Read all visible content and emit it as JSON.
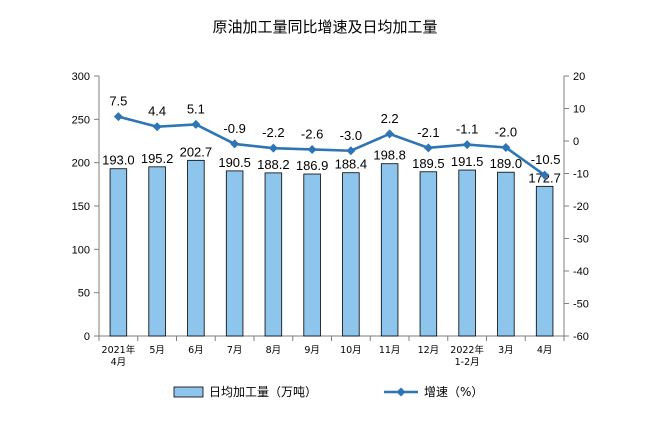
{
  "chart_data": {
    "type": "bar+line",
    "title": "原油加工量同比增速及日均加工量",
    "categories": [
      [
        "2021年",
        "4月"
      ],
      [
        "5月"
      ],
      [
        "6月"
      ],
      [
        "7月"
      ],
      [
        "8月"
      ],
      [
        "9月"
      ],
      [
        "10月"
      ],
      [
        "11月"
      ],
      [
        "12月"
      ],
      [
        "2022年",
        "1-2月"
      ],
      [
        "3月"
      ],
      [
        "4月"
      ]
    ],
    "series": [
      {
        "name": "日均加工量（万吨）",
        "type": "bar",
        "axis": "left",
        "color": "#8EC5EC",
        "values": [
          193.0,
          195.2,
          202.7,
          190.5,
          188.2,
          186.9,
          188.4,
          198.8,
          189.5,
          191.5,
          189.0,
          172.7
        ],
        "labels": [
          "193.0",
          "195.2",
          "202.7",
          "190.5",
          "188.2",
          "186.9",
          "188.4",
          "198.8",
          "189.5",
          "191.5",
          "189.0",
          "172.7"
        ]
      },
      {
        "name": "增速（%）",
        "type": "line",
        "axis": "right",
        "color": "#2E75B6",
        "values": [
          7.5,
          4.4,
          5.1,
          -0.9,
          -2.2,
          -2.6,
          -3.0,
          2.2,
          -2.1,
          -1.1,
          -2.0,
          -10.5
        ],
        "labels": [
          "7.5",
          "4.4",
          "5.1",
          "-0.9",
          "-2.2",
          "-2.6",
          "-3.0",
          "2.2",
          "-2.1",
          "-1.1",
          "-2.0",
          "-10.5"
        ]
      }
    ],
    "y_left": {
      "min": 0,
      "max": 300,
      "ticks": [
        "0",
        "50",
        "100",
        "150",
        "200",
        "250",
        "300"
      ]
    },
    "y_right": {
      "min": -60,
      "max": 20,
      "ticks": [
        "-60",
        "-50",
        "-40",
        "-30",
        "-20",
        "-10",
        "0",
        "10",
        "20"
      ]
    },
    "grid": false,
    "legend_position": "bottom"
  }
}
